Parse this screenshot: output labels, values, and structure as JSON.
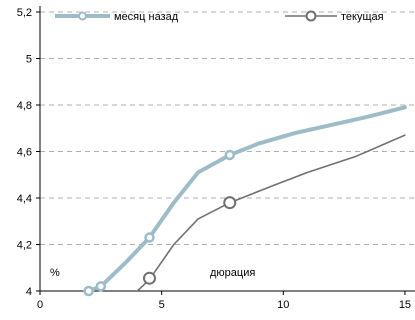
{
  "chart_data": {
    "type": "line",
    "title": "",
    "xlabel": "дюрация",
    "ylabel": "%",
    "xlim": [
      0,
      15
    ],
    "ylim": [
      4,
      5.2
    ],
    "x_ticks": [
      "0",
      "5",
      "10",
      "15"
    ],
    "y_ticks": [
      "4",
      "4,2",
      "4,4",
      "4,6",
      "4,8",
      "5",
      "5,2"
    ],
    "grid": "horizontal dashed",
    "legend_position": "top",
    "series": [
      {
        "name": "месяц назад",
        "color": "#9dbcc8",
        "curve": [
          [
            1.2,
            3.97
          ],
          [
            2.0,
            4.0
          ],
          [
            2.5,
            4.02
          ],
          [
            3.5,
            4.12
          ],
          [
            4.5,
            4.23
          ],
          [
            5.5,
            4.38
          ],
          [
            6.5,
            4.51
          ],
          [
            7.8,
            4.585
          ],
          [
            9.0,
            4.635
          ],
          [
            10.5,
            4.68
          ],
          [
            12.0,
            4.715
          ],
          [
            13.5,
            4.75
          ],
          [
            15.0,
            4.79
          ]
        ],
        "markers": [
          [
            2.0,
            4.0
          ],
          [
            2.5,
            4.02
          ],
          [
            4.5,
            4.23
          ],
          [
            7.8,
            4.585
          ]
        ]
      },
      {
        "name": "текущая",
        "color": "#707070",
        "curve": [
          [
            3.7,
            3.97
          ],
          [
            4.5,
            4.05
          ],
          [
            5.5,
            4.2
          ],
          [
            6.5,
            4.31
          ],
          [
            7.8,
            4.38
          ],
          [
            9.5,
            4.45
          ],
          [
            11.0,
            4.51
          ],
          [
            13.0,
            4.58
          ],
          [
            15.0,
            4.67
          ]
        ],
        "markers": [
          [
            4.5,
            4.055
          ],
          [
            7.8,
            4.38
          ]
        ]
      }
    ]
  }
}
